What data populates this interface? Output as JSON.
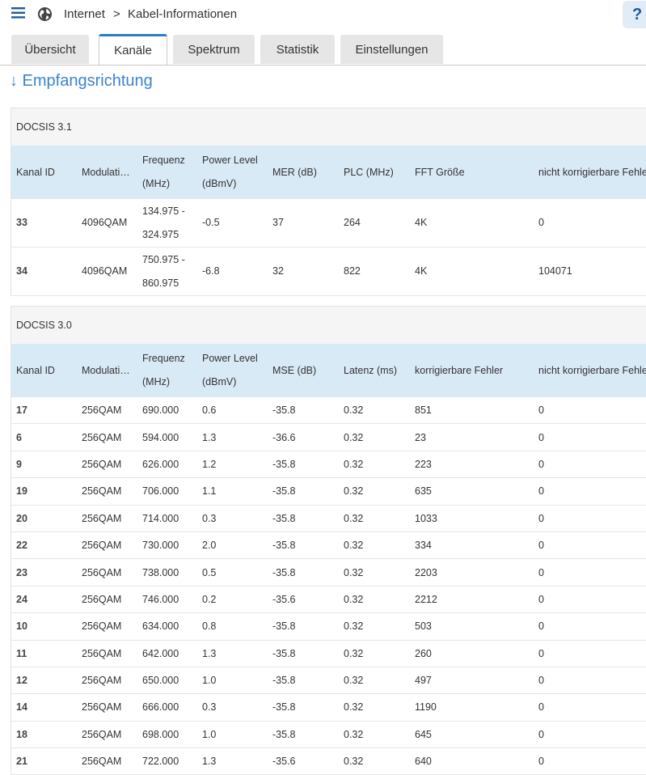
{
  "breadcrumb": {
    "root": "Internet",
    "separator": ">",
    "current": "Kabel-Informationen"
  },
  "help": "?",
  "tabs": [
    "Übersicht",
    "Kanäle",
    "Spektrum",
    "Statistik",
    "Einstellungen"
  ],
  "active_tab": 1,
  "heading": "↓ Empfangsrichtung",
  "sections": [
    {
      "title": "DOCSIS 3.1",
      "headers": [
        "Kanal ID",
        "Modulati…",
        "Frequenz (MHz)",
        "Power Level (dBmV)",
        "MER (dB)",
        "PLC (MHz)",
        "FFT Größe",
        "nicht korrigierbare Fehler"
      ],
      "rows": [
        [
          "33",
          "4096QAM",
          "134.975 - 324.975",
          "-0.5",
          "37",
          "264",
          "4K",
          "0"
        ],
        [
          "34",
          "4096QAM",
          "750.975 - 860.975",
          "-6.8",
          "32",
          "822",
          "4K",
          "104071"
        ]
      ]
    },
    {
      "title": "DOCSIS 3.0",
      "headers": [
        "Kanal ID",
        "Modulati…",
        "Frequenz (MHz)",
        "Power Level (dBmV)",
        "MSE (dB)",
        "Latenz (ms)",
        "korrigierbare Fehler",
        "nicht korrigierbare Fehler"
      ],
      "rows": [
        [
          "17",
          "256QAM",
          "690.000",
          "0.6",
          "-35.8",
          "0.32",
          "851",
          "0"
        ],
        [
          "6",
          "256QAM",
          "594.000",
          "1.3",
          "-36.6",
          "0.32",
          "23",
          "0"
        ],
        [
          "9",
          "256QAM",
          "626.000",
          "1.2",
          "-35.8",
          "0.32",
          "223",
          "0"
        ],
        [
          "19",
          "256QAM",
          "706.000",
          "1.1",
          "-35.8",
          "0.32",
          "635",
          "0"
        ],
        [
          "20",
          "256QAM",
          "714.000",
          "0.3",
          "-35.8",
          "0.32",
          "1033",
          "0"
        ],
        [
          "22",
          "256QAM",
          "730.000",
          "2.0",
          "-35.8",
          "0.32",
          "334",
          "0"
        ],
        [
          "23",
          "256QAM",
          "738.000",
          "0.5",
          "-35.8",
          "0.32",
          "2203",
          "0"
        ],
        [
          "24",
          "256QAM",
          "746.000",
          "0.2",
          "-35.6",
          "0.32",
          "2212",
          "0"
        ],
        [
          "10",
          "256QAM",
          "634.000",
          "0.8",
          "-35.8",
          "0.32",
          "503",
          "0"
        ],
        [
          "11",
          "256QAM",
          "642.000",
          "1.3",
          "-35.8",
          "0.32",
          "260",
          "0"
        ],
        [
          "12",
          "256QAM",
          "650.000",
          "1.0",
          "-35.8",
          "0.32",
          "497",
          "0"
        ],
        [
          "14",
          "256QAM",
          "666.000",
          "0.3",
          "-35.8",
          "0.32",
          "1190",
          "0"
        ],
        [
          "18",
          "256QAM",
          "698.000",
          "1.0",
          "-35.8",
          "0.32",
          "645",
          "0"
        ],
        [
          "21",
          "256QAM",
          "722.000",
          "1.3",
          "-35.6",
          "0.32",
          "640",
          "0"
        ]
      ]
    }
  ]
}
